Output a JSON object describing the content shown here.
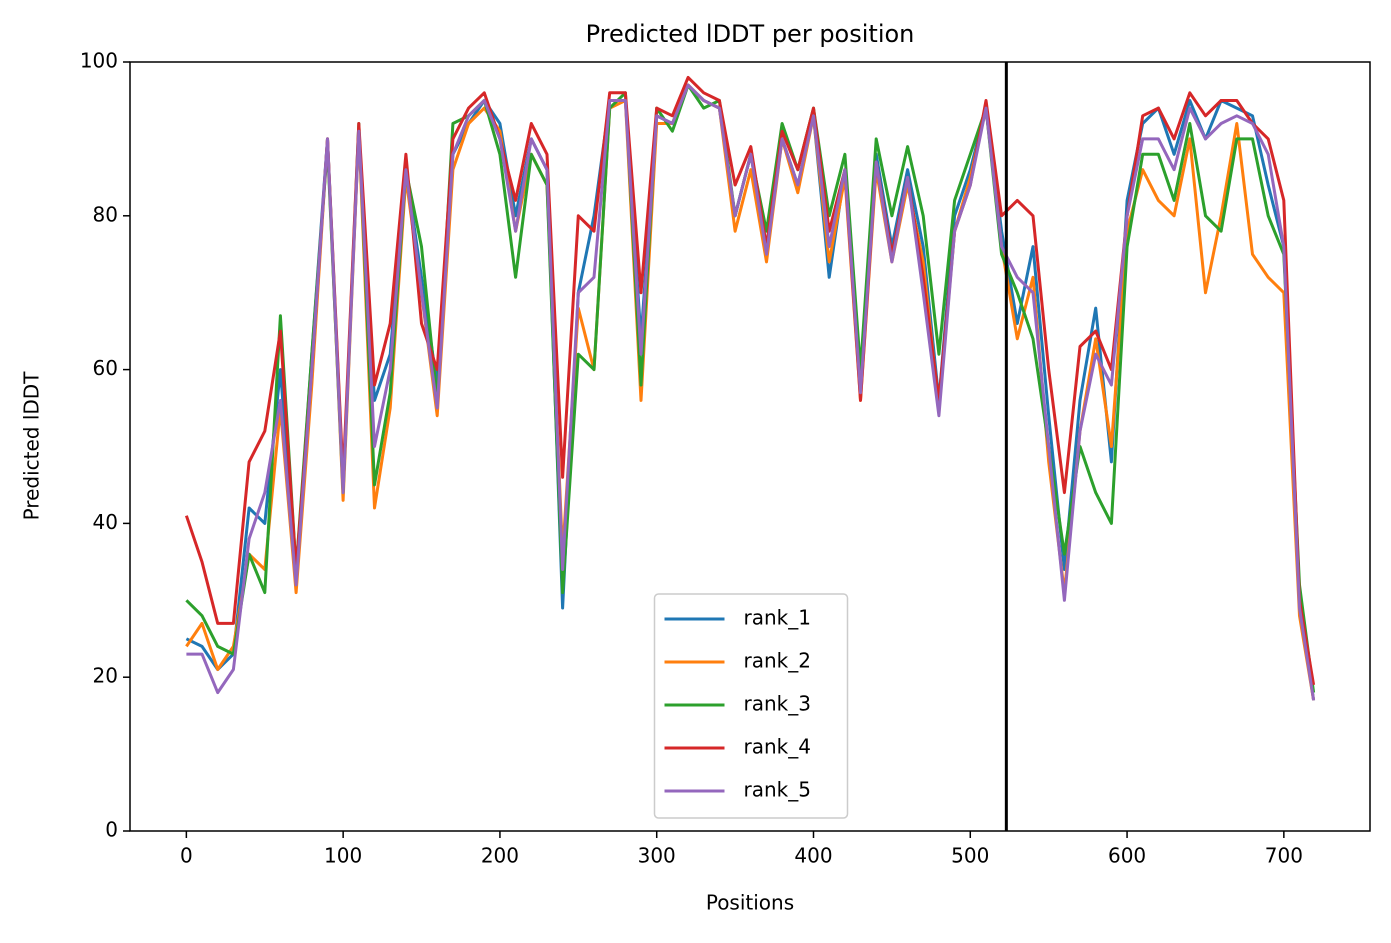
{
  "chart_data": {
    "type": "line",
    "title": "Predicted lDDT per position",
    "x_label": "Positions",
    "y_label": "Predicted lDDT",
    "x": [
      0,
      10,
      20,
      30,
      40,
      50,
      60,
      70,
      80,
      90,
      100,
      110,
      120,
      130,
      140,
      150,
      160,
      170,
      180,
      190,
      200,
      210,
      220,
      230,
      240,
      250,
      260,
      270,
      280,
      290,
      300,
      310,
      320,
      330,
      340,
      350,
      360,
      370,
      380,
      390,
      400,
      410,
      420,
      430,
      440,
      450,
      460,
      470,
      480,
      490,
      500,
      510,
      520,
      530,
      540,
      550,
      560,
      570,
      580,
      590,
      600,
      610,
      620,
      630,
      640,
      650,
      660,
      670,
      680,
      690,
      700,
      710,
      719
    ],
    "series": [
      {
        "name": "rank_1",
        "color": "#1f77b4",
        "values": [
          25,
          24,
          21,
          23,
          42,
          40,
          60,
          33,
          62,
          90,
          45,
          91,
          56,
          62,
          86,
          72,
          58,
          88,
          92,
          95,
          92,
          80,
          90,
          86,
          29,
          70,
          80,
          95,
          95,
          64,
          93,
          92,
          97,
          95,
          94,
          80,
          88,
          76,
          90,
          84,
          93,
          72,
          86,
          58,
          88,
          76,
          86,
          76,
          56,
          80,
          86,
          94,
          78,
          66,
          76,
          54,
          34,
          56,
          68,
          48,
          82,
          92,
          94,
          88,
          95,
          90,
          95,
          94,
          93,
          84,
          76,
          30,
          17
        ]
      },
      {
        "name": "rank_2",
        "color": "#ff7f0e",
        "values": [
          24,
          27,
          21,
          24,
          36,
          34,
          55,
          31,
          58,
          90,
          43,
          91,
          42,
          55,
          85,
          70,
          54,
          86,
          92,
          94,
          91,
          78,
          88,
          84,
          36,
          68,
          60,
          94,
          95,
          56,
          92,
          92,
          97,
          95,
          94,
          78,
          86,
          74,
          90,
          83,
          93,
          74,
          85,
          56,
          86,
          74,
          84,
          74,
          55,
          78,
          85,
          94,
          76,
          64,
          72,
          48,
          31,
          52,
          64,
          50,
          78,
          86,
          82,
          80,
          90,
          70,
          80,
          92,
          75,
          72,
          70,
          28,
          17
        ]
      },
      {
        "name": "rank_3",
        "color": "#2ca02c",
        "values": [
          30,
          28,
          24,
          23,
          36,
          31,
          67,
          34,
          62,
          89,
          44,
          92,
          45,
          57,
          86,
          76,
          56,
          92,
          93,
          95,
          88,
          72,
          88,
          84,
          31,
          62,
          60,
          94,
          96,
          58,
          94,
          91,
          97,
          94,
          95,
          80,
          88,
          78,
          92,
          86,
          94,
          80,
          88,
          60,
          90,
          80,
          89,
          80,
          62,
          82,
          88,
          94,
          75,
          70,
          64,
          50,
          36,
          50,
          44,
          40,
          76,
          88,
          88,
          82,
          92,
          80,
          78,
          90,
          90,
          80,
          75,
          32,
          18
        ]
      },
      {
        "name": "rank_4",
        "color": "#d62728",
        "values": [
          41,
          35,
          27,
          27,
          48,
          52,
          65,
          34,
          60,
          90,
          46,
          92,
          58,
          66,
          88,
          66,
          60,
          90,
          94,
          96,
          90,
          82,
          92,
          88,
          46,
          80,
          78,
          96,
          96,
          70,
          94,
          93,
          98,
          96,
          95,
          84,
          89,
          76,
          91,
          86,
          94,
          78,
          86,
          56,
          87,
          75,
          85,
          72,
          56,
          78,
          84,
          95,
          80,
          82,
          80,
          60,
          44,
          63,
          65,
          60,
          80,
          93,
          94,
          90,
          96,
          93,
          95,
          95,
          92,
          90,
          82,
          30,
          19
        ]
      },
      {
        "name": "rank_5",
        "color": "#9467bd",
        "values": [
          23,
          23,
          18,
          21,
          38,
          44,
          56,
          32,
          60,
          90,
          44,
          91,
          50,
          60,
          86,
          70,
          55,
          88,
          93,
          95,
          90,
          78,
          90,
          86,
          34,
          70,
          72,
          95,
          95,
          62,
          93,
          92,
          97,
          95,
          94,
          80,
          88,
          75,
          90,
          84,
          93,
          76,
          86,
          57,
          87,
          74,
          85,
          70,
          54,
          78,
          84,
          94,
          76,
          72,
          70,
          50,
          30,
          52,
          62,
          58,
          80,
          90,
          90,
          86,
          94,
          90,
          92,
          93,
          92,
          88,
          76,
          29,
          17
        ]
      }
    ],
    "vline_x": 523,
    "vline_color": "#000000",
    "xlim": [
      -35.95,
      754.95
    ],
    "xticks": [
      0,
      100,
      200,
      300,
      400,
      500,
      600,
      700
    ],
    "ylim": [
      0,
      100
    ],
    "yticks": [
      0,
      20,
      40,
      60,
      80,
      100
    ],
    "legend": "lower center",
    "grid": false
  }
}
